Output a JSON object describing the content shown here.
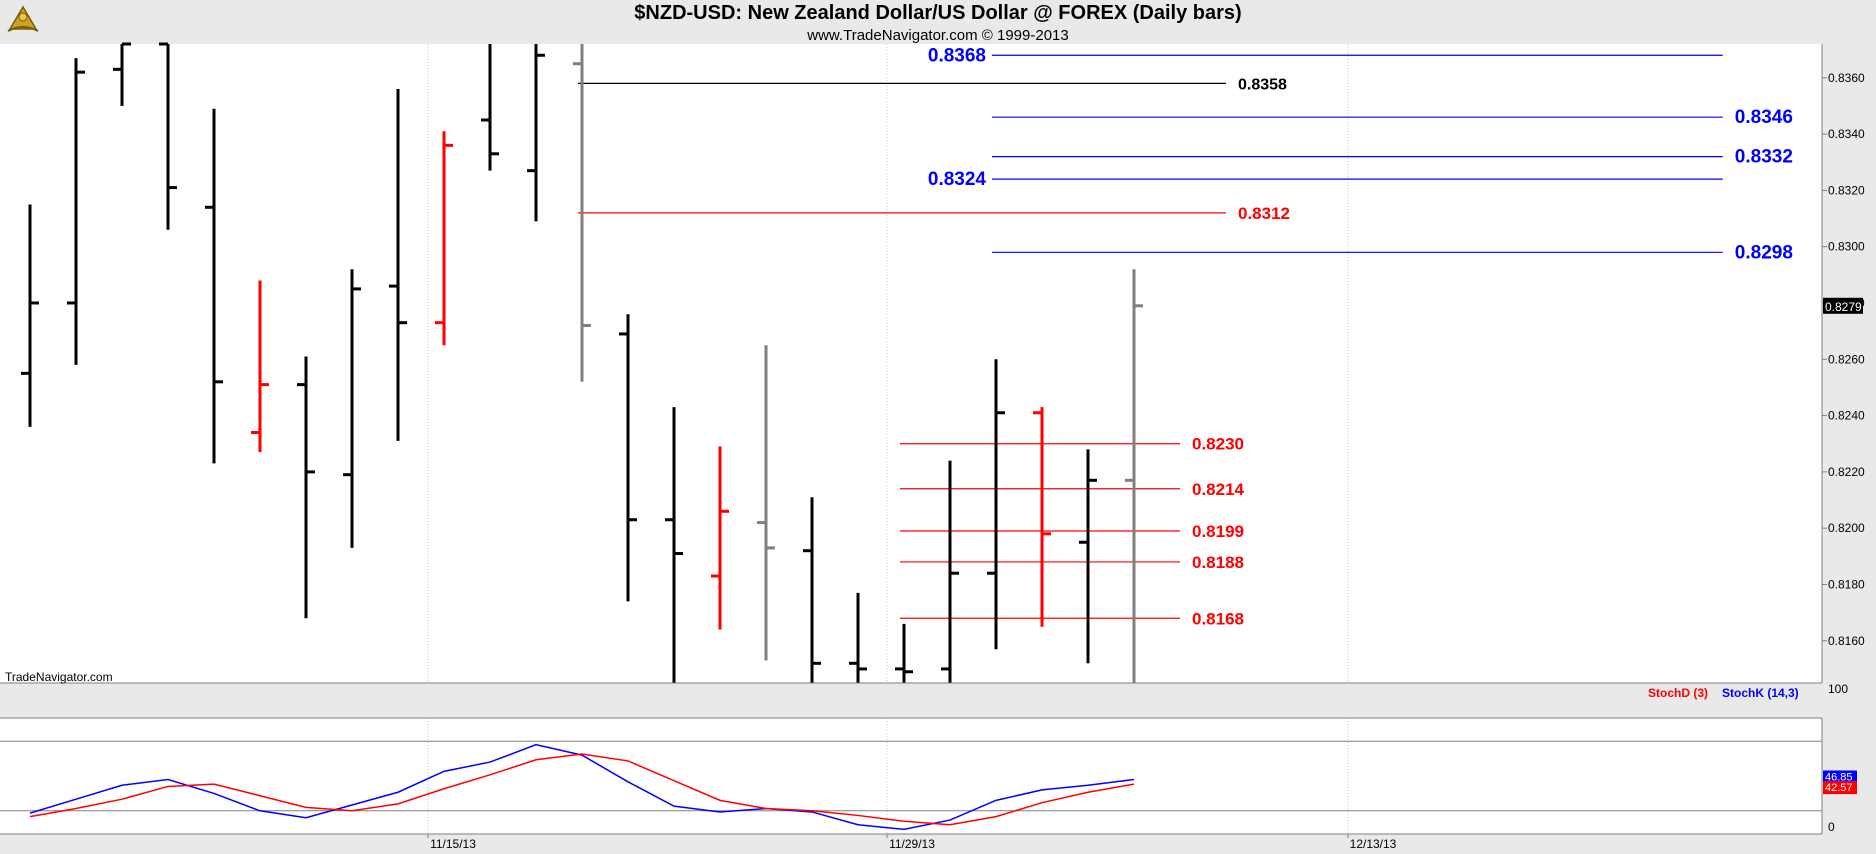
{
  "header": {
    "title": "$NZD-USD:  New Zealand Dollar/US Dollar @ FOREX  (Daily bars)",
    "subtitle": "www.TradeNavigator.com © 1999-2013",
    "watermark": "TradeNavigator.com",
    "logo_icon": "sextant-logo-icon"
  },
  "colors": {
    "up": "#000000",
    "down": "#ff0000",
    "neutral": "#808080",
    "level_blue": "#0000ff",
    "level_red": "#ff0000",
    "level_black": "#000000",
    "stoch_d": "#ff0000",
    "stoch_k": "#0000ff"
  },
  "chart_data": [
    {
      "type": "ohlc",
      "title": "$NZD-USD:  New Zealand Dollar/US Dollar @ FOREX  (Daily bars)",
      "ylim": [
        0.8145,
        0.8372
      ],
      "y_ticks": [
        "0.8160",
        "0.8180",
        "0.8200",
        "0.8220",
        "0.8240",
        "0.8260",
        "0.8280",
        "0.8300",
        "0.8320",
        "0.8340",
        "0.8360"
      ],
      "x_ticks": [
        "11/15/13",
        "11/29/13",
        "12/13/13"
      ],
      "last_price": "0.8279",
      "bars": [
        {
          "o": 0.8255,
          "h": 0.8315,
          "l": 0.8236,
          "c": 0.828,
          "color": "up"
        },
        {
          "o": 0.828,
          "h": 0.8367,
          "l": 0.8258,
          "c": 0.8362,
          "color": "up"
        },
        {
          "o": 0.8363,
          "h": 0.8375,
          "l": 0.835,
          "c": 0.8375,
          "color": "up"
        },
        {
          "o": 0.8375,
          "h": 0.8375,
          "l": 0.8306,
          "c": 0.8321,
          "color": "up"
        },
        {
          "o": 0.8314,
          "h": 0.8349,
          "l": 0.8223,
          "c": 0.8252,
          "color": "up"
        },
        {
          "o": 0.8234,
          "h": 0.8288,
          "l": 0.8227,
          "c": 0.8251,
          "color": "down"
        },
        {
          "o": 0.8251,
          "h": 0.8261,
          "l": 0.8168,
          "c": 0.822,
          "color": "up"
        },
        {
          "o": 0.8219,
          "h": 0.8292,
          "l": 0.8193,
          "c": 0.8285,
          "color": "up"
        },
        {
          "o": 0.8286,
          "h": 0.8356,
          "l": 0.8231,
          "c": 0.8273,
          "color": "up"
        },
        {
          "o": 0.8273,
          "h": 0.8341,
          "l": 0.8265,
          "c": 0.8336,
          "color": "down"
        },
        {
          "o": 0.8345,
          "h": 0.8375,
          "l": 0.8327,
          "c": 0.8333,
          "color": "up"
        },
        {
          "o": 0.8327,
          "h": 0.8375,
          "l": 0.8309,
          "c": 0.8368,
          "color": "up"
        },
        {
          "o": 0.8365,
          "h": 0.8375,
          "l": 0.8252,
          "c": 0.8272,
          "color": "neutral"
        },
        {
          "o": 0.8269,
          "h": 0.8276,
          "l": 0.8174,
          "c": 0.8203,
          "color": "up"
        },
        {
          "o": 0.8203,
          "h": 0.8243,
          "l": 0.8145,
          "c": 0.8191,
          "color": "up"
        },
        {
          "o": 0.8183,
          "h": 0.8229,
          "l": 0.8164,
          "c": 0.8206,
          "color": "down"
        },
        {
          "o": 0.8202,
          "h": 0.8265,
          "l": 0.8153,
          "c": 0.8193,
          "color": "neutral"
        },
        {
          "o": 0.8192,
          "h": 0.8211,
          "l": 0.8145,
          "c": 0.8152,
          "color": "up"
        },
        {
          "o": 0.8152,
          "h": 0.8177,
          "l": 0.8145,
          "c": 0.815,
          "color": "up"
        },
        {
          "o": 0.815,
          "h": 0.8166,
          "l": 0.8145,
          "c": 0.8149,
          "color": "up"
        },
        {
          "o": 0.815,
          "h": 0.8224,
          "l": 0.8145,
          "c": 0.8184,
          "color": "up"
        },
        {
          "o": 0.8184,
          "h": 0.826,
          "l": 0.8157,
          "c": 0.8241,
          "color": "up"
        },
        {
          "o": 0.8241,
          "h": 0.8243,
          "l": 0.8165,
          "c": 0.8198,
          "color": "down"
        },
        {
          "o": 0.8195,
          "h": 0.8228,
          "l": 0.8152,
          "c": 0.8217,
          "color": "up"
        },
        {
          "o": 0.8217,
          "h": 0.8292,
          "l": 0.8145,
          "c": 0.8279,
          "color": "neutral"
        }
      ],
      "levels": [
        {
          "value": 0.8368,
          "label": "0.8368",
          "color": "level_blue",
          "from_bar": 21,
          "to_bar": 36.8,
          "label_pos": "left"
        },
        {
          "value": 0.8358,
          "label": "0.8358",
          "color": "level_black",
          "from_bar": 12,
          "to_bar": 26,
          "label_pos": "right"
        },
        {
          "value": 0.8346,
          "label": "0.8346",
          "color": "level_blue",
          "from_bar": 21,
          "to_bar": 36.8,
          "label_pos": "right"
        },
        {
          "value": 0.8332,
          "label": "0.8332",
          "color": "level_blue",
          "from_bar": 21,
          "to_bar": 36.8,
          "label_pos": "right"
        },
        {
          "value": 0.8324,
          "label": "0.8324",
          "color": "level_blue",
          "from_bar": 21,
          "to_bar": 36.8,
          "label_pos": "left"
        },
        {
          "value": 0.8312,
          "label": "0.8312",
          "color": "level_red",
          "from_bar": 12,
          "to_bar": 26,
          "label_pos": "right"
        },
        {
          "value": 0.8298,
          "label": "0.8298",
          "color": "level_blue",
          "from_bar": 21,
          "to_bar": 36.8,
          "label_pos": "right"
        },
        {
          "value": 0.823,
          "label": "0.8230",
          "color": "level_red",
          "from_bar": 19,
          "to_bar": 25,
          "label_pos": "right"
        },
        {
          "value": 0.8214,
          "label": "0.8214",
          "color": "level_red",
          "from_bar": 19,
          "to_bar": 25,
          "label_pos": "right"
        },
        {
          "value": 0.8199,
          "label": "0.8199",
          "color": "level_red",
          "from_bar": 19,
          "to_bar": 25,
          "label_pos": "right"
        },
        {
          "value": 0.8188,
          "label": "0.8188",
          "color": "level_red",
          "from_bar": 19,
          "to_bar": 25,
          "label_pos": "right"
        },
        {
          "value": 0.8168,
          "label": "0.8168",
          "color": "level_red",
          "from_bar": 19,
          "to_bar": 25,
          "label_pos": "right"
        }
      ]
    },
    {
      "type": "line",
      "legend": [
        {
          "label": "StochD (3)",
          "color": "stoch_d"
        },
        {
          "label": "StochK (14,3)",
          "color": "stoch_k"
        }
      ],
      "ylim": [
        0,
        100
      ],
      "y_ticks": [
        "0",
        "100"
      ],
      "reference_lines": [
        20,
        80
      ],
      "last_values": {
        "k": "46.85",
        "d": "42.57"
      },
      "series": [
        {
          "name": "StochK (14,3)",
          "color": "stoch_k",
          "values": [
            18,
            30,
            42,
            47,
            35,
            20,
            14,
            25,
            36,
            54,
            62,
            77,
            68,
            45,
            24,
            19,
            22,
            19,
            8,
            4,
            12,
            29,
            38,
            42,
            47
          ]
        },
        {
          "name": "StochD (3)",
          "color": "stoch_d",
          "values": [
            15,
            22,
            30,
            41,
            43,
            33,
            23,
            20,
            26,
            39,
            51,
            64,
            69,
            63,
            46,
            29,
            22,
            20,
            16,
            11,
            8,
            15,
            27,
            36,
            43
          ]
        }
      ]
    }
  ]
}
